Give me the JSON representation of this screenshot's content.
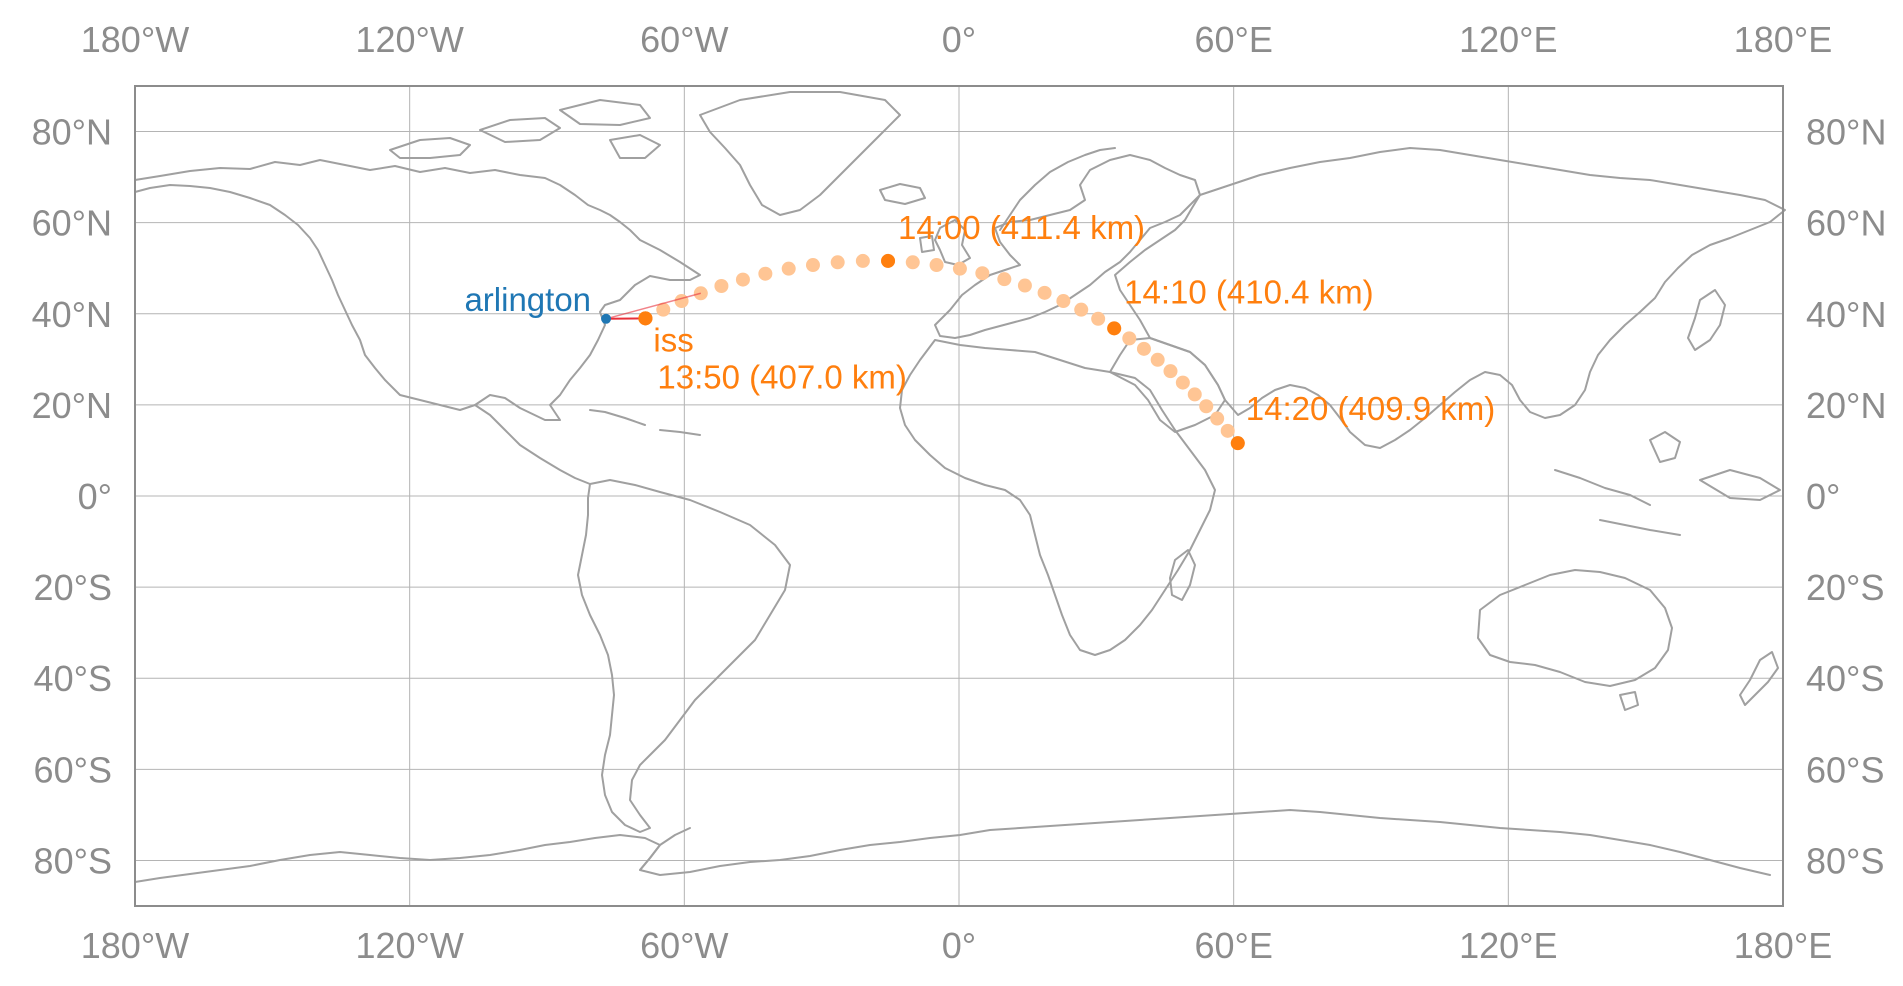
{
  "colors": {
    "observer": "#1f77b4",
    "satellite": "#ff7f0e",
    "track_faded": "#ffc594",
    "line_of_sight": "#e8303a",
    "coastline": "#a0a0a0",
    "grid": "#b4b4b4",
    "tick_text": "#8c8c8c"
  },
  "map": {
    "projection": "equirectangular",
    "lon_range": [
      -180,
      180
    ],
    "lat_range": [
      -90,
      90
    ],
    "grid": true,
    "lon_ticks": [
      {
        "value": -180,
        "label": "180°W"
      },
      {
        "value": -120,
        "label": "120°W"
      },
      {
        "value": -60,
        "label": "60°W"
      },
      {
        "value": 0,
        "label": "0°"
      },
      {
        "value": 60,
        "label": "60°E"
      },
      {
        "value": 120,
        "label": "120°E"
      },
      {
        "value": 180,
        "label": "180°E"
      }
    ],
    "lat_ticks": [
      {
        "value": 80,
        "label": "80°N"
      },
      {
        "value": 60,
        "label": "60°N"
      },
      {
        "value": 40,
        "label": "40°N"
      },
      {
        "value": 20,
        "label": "20°N"
      },
      {
        "value": 0,
        "label": "0°"
      },
      {
        "value": -20,
        "label": "20°S"
      },
      {
        "value": -40,
        "label": "40°S"
      },
      {
        "value": -60,
        "label": "60°S"
      },
      {
        "value": -80,
        "label": "80°S"
      }
    ]
  },
  "observer": {
    "label": "arlington",
    "lon": -77.1,
    "lat": 38.9
  },
  "satellite": {
    "label": "iss",
    "lon": -68.5,
    "lat": 39.0
  },
  "ground_track": {
    "points": [
      [
        -68.5,
        39.0
      ],
      [
        -64.6,
        40.9
      ],
      [
        -60.6,
        42.8
      ],
      [
        -56.4,
        44.5
      ],
      [
        -51.9,
        46.1
      ],
      [
        -47.2,
        47.5
      ],
      [
        -42.3,
        48.8
      ],
      [
        -37.2,
        49.9
      ],
      [
        -31.9,
        50.7
      ],
      [
        -26.5,
        51.3
      ],
      [
        -21.0,
        51.6
      ],
      [
        -15.5,
        51.6
      ],
      [
        -10.1,
        51.3
      ],
      [
        -4.9,
        50.7
      ],
      [
        0.2,
        49.9
      ],
      [
        5.1,
        48.9
      ],
      [
        9.9,
        47.6
      ],
      [
        14.4,
        46.2
      ],
      [
        18.7,
        44.6
      ],
      [
        22.8,
        42.8
      ],
      [
        26.7,
        40.9
      ],
      [
        30.4,
        38.9
      ],
      [
        33.9,
        36.8
      ],
      [
        37.2,
        34.6
      ],
      [
        40.4,
        32.3
      ],
      [
        43.4,
        29.9
      ],
      [
        46.2,
        27.4
      ],
      [
        48.9,
        24.9
      ],
      [
        51.5,
        22.3
      ],
      [
        54.0,
        19.7
      ],
      [
        56.4,
        17.0
      ],
      [
        58.7,
        14.3
      ],
      [
        60.9,
        11.6
      ]
    ],
    "labeled_points": [
      {
        "lon": -68.5,
        "lat": 39.0,
        "label": "13:50 (407.0 km)"
      },
      {
        "lon": -15.5,
        "lat": 51.6,
        "label": "14:00 (411.4 km)"
      },
      {
        "lon": 33.9,
        "lat": 36.8,
        "label": "14:10 (410.4 km)"
      },
      {
        "lon": 60.9,
        "lat": 11.6,
        "label": "14:20 (409.9 km)"
      }
    ]
  }
}
